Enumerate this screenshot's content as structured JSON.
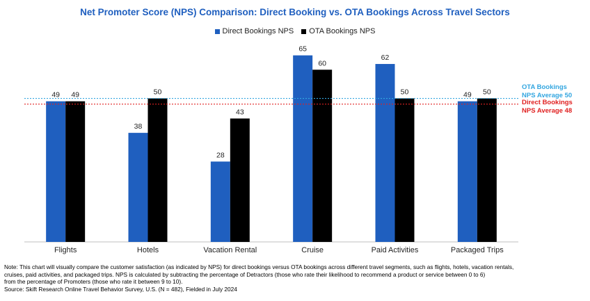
{
  "chart_data": {
    "type": "bar",
    "title": "Net Promoter Score (NPS) Comparison: Direct Booking vs. OTA Bookings Across Travel Sectors",
    "categories": [
      "Flights",
      "Hotels",
      "Vacation Rental",
      "Cruise",
      "Paid Activities",
      "Packaged Trips"
    ],
    "series": [
      {
        "name": "Direct Bookings NPS",
        "values": [
          49,
          38,
          28,
          65,
          62,
          49
        ],
        "color": "#1f5fbf"
      },
      {
        "name": "OTA Bookings NPS",
        "values": [
          49,
          50,
          43,
          60,
          50,
          50
        ],
        "color": "#000000"
      }
    ],
    "ylim": [
      0,
      70
    ],
    "grid": false,
    "legend_position": "top-center",
    "reference_lines": [
      {
        "value": 50,
        "label_line1": "OTA Bookings",
        "label_line2": "NPS Average 50",
        "color": "#33a6e0",
        "style": "dotted"
      },
      {
        "value": 48,
        "label_line1": "Direct Bookings",
        "label_line2": "NPS Average 48",
        "color": "#e02020",
        "style": "dotted"
      }
    ],
    "title_color": "#1f5fbf"
  },
  "footnote": {
    "line1": "Note: This chart will visually compare the customer satisfaction (as indicated by NPS) for direct bookings versus OTA bookings across different travel segments, such as flights, hotels, vacation rentals,",
    "line2": "cruises, paid activities, and packaged trips. NPS is calculated by subtracting the percentage of Detractors (those who rate their likelihood to recommend a product or service between 0 to 6)",
    "line3": "from the percentage of Promoters (those who rate it between 9 to 10).",
    "line4": "Source: Skift Research Online Travel Behavior Survey, U.S. (N = 482), Fielded in July 2024"
  }
}
